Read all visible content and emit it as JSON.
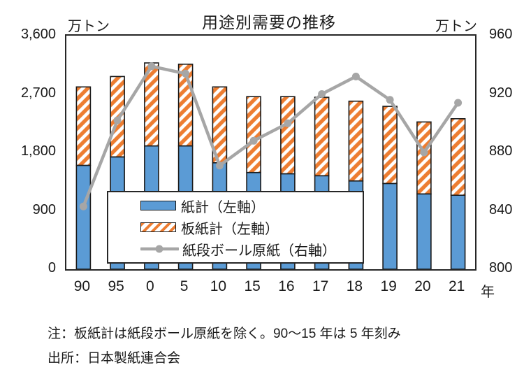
{
  "title": "用途別需要の推移",
  "left_axis": {
    "unit": "万トン",
    "ticks": [
      "3,600",
      "2,700",
      "1,800",
      "900",
      "0"
    ],
    "min": 0,
    "max": 3600
  },
  "right_axis": {
    "unit": "万トン",
    "ticks": [
      "960",
      "920",
      "880",
      "840",
      "800"
    ],
    "min": 800,
    "max": 960
  },
  "x_axis": {
    "labels": [
      "90",
      "95",
      "0",
      "5",
      "10",
      "15",
      "16",
      "17",
      "18",
      "19",
      "20",
      "21"
    ],
    "suffix": "年"
  },
  "legend": {
    "items": [
      {
        "label": "紙計（左軸）",
        "type": "bar-solid"
      },
      {
        "label": "板紙計（左軸）",
        "type": "bar-hatched"
      },
      {
        "label": "紙段ボール原紙（右軸）",
        "type": "line-marker"
      }
    ]
  },
  "notes": [
    "注：板紙計は紙段ボール原紙を除く。90～15 年は 5 年刻み",
    "出所：日本製紙連合会"
  ],
  "colors": {
    "paper_bar": "#5B9BD5",
    "board_hatch": "#ED7D31",
    "line": "#A6A6A6",
    "bar_border": "#1a1a1a",
    "frame": "#262626"
  },
  "chart_data": {
    "type": "bar",
    "subtype": "stacked-bar-with-line-combo",
    "categories": [
      "90",
      "95",
      "0",
      "5",
      "10",
      "15",
      "16",
      "17",
      "18",
      "19",
      "20",
      "21"
    ],
    "series": [
      {
        "name": "紙計（左軸）",
        "type": "bar",
        "stacked": true,
        "axis": "left",
        "values": [
          1600,
          1730,
          1900,
          1900,
          1640,
          1490,
          1470,
          1440,
          1360,
          1320,
          1160,
          1140
        ]
      },
      {
        "name": "板紙計（左軸）",
        "type": "bar",
        "stacked": true,
        "axis": "left",
        "fill": "diagonal-hatch",
        "values": [
          1210,
          1240,
          1280,
          1260,
          1170,
          1170,
          1190,
          1210,
          1230,
          1190,
          1110,
          1180
        ]
      },
      {
        "name": "紙段ボール原紙（右軸）",
        "type": "line",
        "axis": "right",
        "values": [
          843,
          902,
          939,
          934,
          871,
          888,
          900,
          920,
          932,
          916,
          880,
          914
        ]
      }
    ],
    "title": "用途別需要の推移",
    "xlabel": "年",
    "ylabel_left": "万トン",
    "ylabel_right": "万トン",
    "left_ylim": [
      0,
      3600
    ],
    "right_ylim": [
      800,
      960
    ],
    "grid": false,
    "legend_position": "inside-lower-center"
  }
}
